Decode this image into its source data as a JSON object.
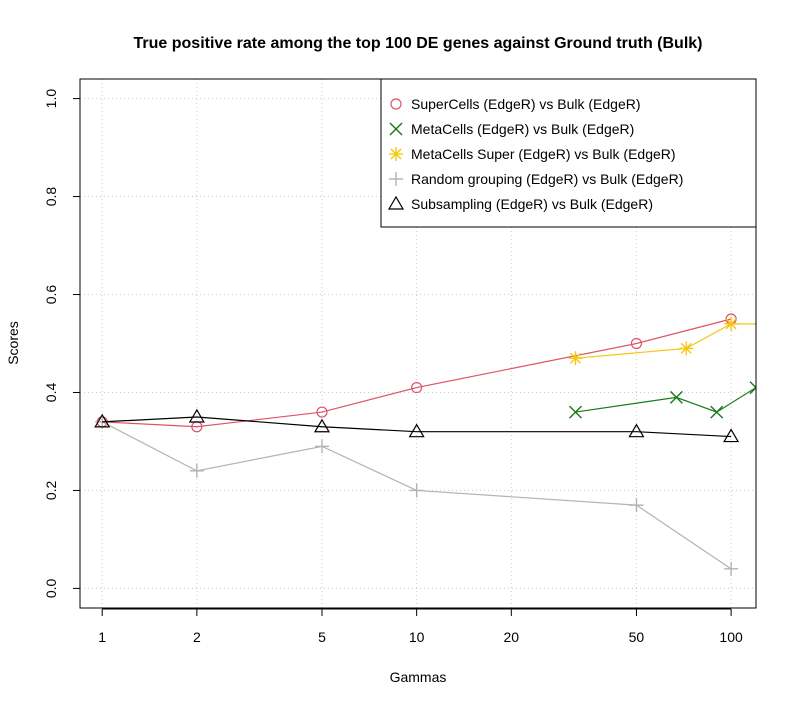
{
  "chart_data": {
    "type": "line",
    "title": "True positive rate among the top 100 DE genes against Ground truth (Bulk)",
    "xlabel": "Gammas",
    "ylabel": "Scores",
    "xscale": "log10",
    "xlim": [
      0.85,
      120
    ],
    "ylim": [
      -0.04,
      1.04
    ],
    "xticks": [
      1,
      2,
      5,
      10,
      20,
      50,
      100
    ],
    "xtick_labels": [
      "1",
      "2",
      "5",
      "10",
      "20",
      "50",
      "100"
    ],
    "yticks": [
      0.0,
      0.2,
      0.4,
      0.6,
      0.8,
      1.0
    ],
    "ytick_labels": [
      "0.0",
      "0.2",
      "0.4",
      "0.6",
      "0.8",
      "1.0"
    ],
    "grid": true,
    "legend_position": "top-right",
    "series": [
      {
        "name": "SuperCells (EdgeR) vs Bulk (EdgeR)",
        "color": "#df536b",
        "marker": "circle",
        "x": [
          1,
          2,
          5,
          10,
          50,
          100
        ],
        "y": [
          0.34,
          0.33,
          0.36,
          0.41,
          0.5,
          0.55
        ]
      },
      {
        "name": "MetaCells (EdgeR) vs Bulk (EdgeR)",
        "color": "#1b7a1b",
        "marker": "x",
        "x": [
          32,
          67,
          90,
          120
        ],
        "y": [
          0.36,
          0.39,
          0.36,
          0.41
        ]
      },
      {
        "name": "MetaCells Super (EdgeR) vs Bulk (EdgeR)",
        "color": "#f5c710",
        "marker": "asterisk",
        "x": [
          32,
          72,
          100,
          125
        ],
        "y": [
          0.47,
          0.49,
          0.54,
          0.54
        ]
      },
      {
        "name": "Random grouping (EdgeR) vs Bulk (EdgeR)",
        "color": "#b3b3b3",
        "marker": "plus",
        "x": [
          1,
          2,
          5,
          10,
          50,
          100
        ],
        "y": [
          0.34,
          0.24,
          0.29,
          0.2,
          0.17,
          0.04
        ]
      },
      {
        "name": "Subsampling (EdgeR) vs Bulk (EdgeR)",
        "color": "#000000",
        "marker": "triangle",
        "x": [
          1,
          2,
          5,
          10,
          50,
          100
        ],
        "y": [
          0.34,
          0.35,
          0.33,
          0.32,
          0.32,
          0.31
        ]
      }
    ]
  }
}
